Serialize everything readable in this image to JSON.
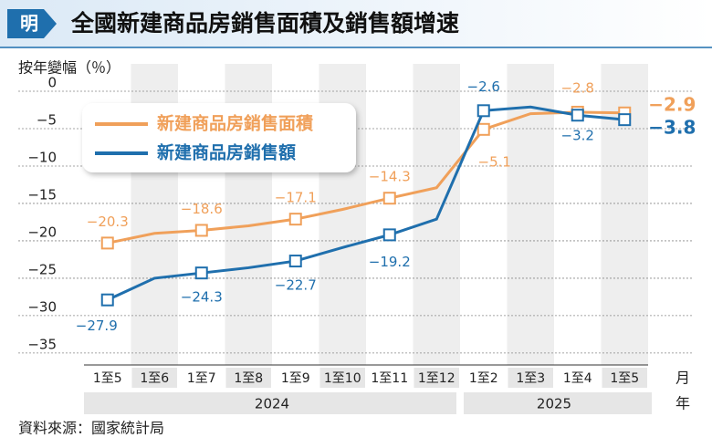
{
  "chart_data": {
    "type": "line",
    "title": "全國新建商品房銷售面積及銷售額增速",
    "y_label": "按年變幅（％）",
    "x_unit": "月",
    "year_unit": "年",
    "source": "資料來源：國家統計局",
    "categories": [
      "1至5",
      "1至6",
      "1至7",
      "1至8",
      "1至9",
      "1至10",
      "1至11",
      "1至12",
      "1至2",
      "1至3",
      "1至4",
      "1至5"
    ],
    "groups": [
      {
        "label": "2024",
        "count": 8
      },
      {
        "label": "2025",
        "count": 4
      }
    ],
    "series": [
      {
        "name": "新建商品房銷售面積",
        "color": "#f0a05a",
        "values": [
          -20.3,
          -19.0,
          -18.6,
          -18.0,
          -17.1,
          -15.8,
          -14.3,
          -12.9,
          -5.1,
          -3.0,
          -2.8,
          -2.9
        ],
        "value_labels": [
          "−20.3",
          null,
          "−18.6",
          null,
          "−17.1",
          null,
          "−14.3",
          null,
          "−5.1",
          null,
          "−2.8",
          "−2.9"
        ]
      },
      {
        "name": "新建商品房銷售額",
        "color": "#1f6fad",
        "values": [
          -27.9,
          -25.0,
          -24.3,
          -23.6,
          -22.7,
          -20.9,
          -19.2,
          -17.1,
          -2.6,
          -2.1,
          -3.2,
          -3.8
        ],
        "value_labels": [
          "−27.9",
          null,
          "−24.3",
          null,
          "−22.7",
          null,
          "−19.2",
          null,
          "−2.6",
          null,
          "−3.2",
          "−3.8"
        ]
      }
    ],
    "ylim": [
      -36.6,
      0
    ],
    "yticks": [
      0,
      {
        "value": -5,
        "label": "−5"
      },
      {
        "value": -10,
        "label": "−10"
      },
      {
        "value": -15,
        "label": "−15"
      },
      {
        "value": -20,
        "label": "−20"
      },
      {
        "value": -25,
        "label": "−25"
      },
      {
        "value": -30,
        "label": "−30"
      },
      {
        "value": -35,
        "label": "−35"
      }
    ],
    "grid": true
  }
}
